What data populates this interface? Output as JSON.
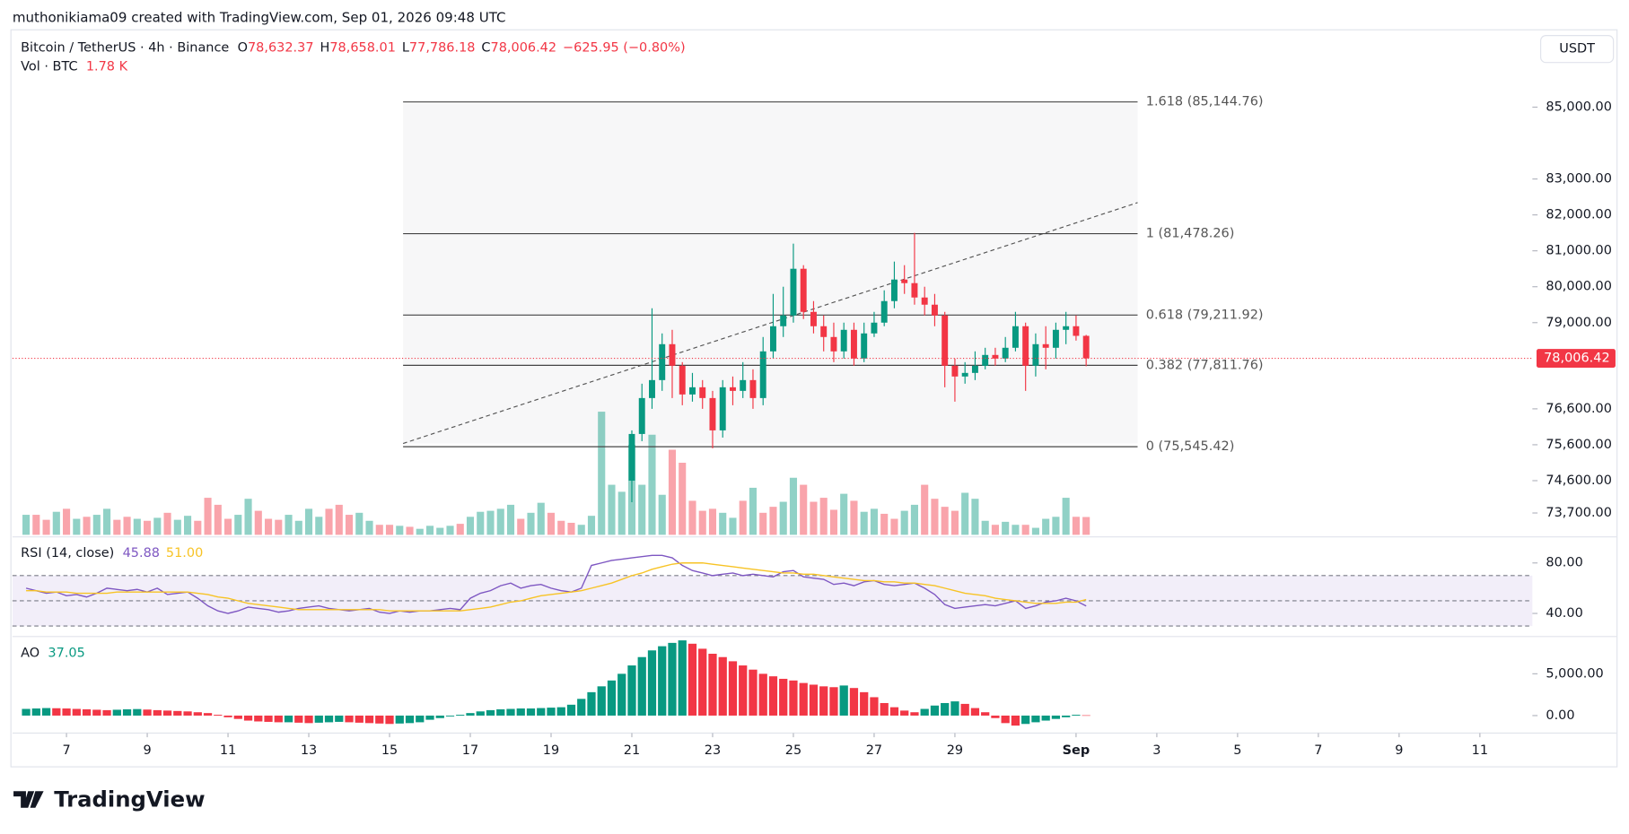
{
  "header": {
    "credit": "muthonikiama09 created with TradingView.com, Sep 01, 2026 09:48 UTC",
    "currency": "USDT",
    "logo": "TradingView"
  },
  "chart_data": [
    {
      "type": "candlestick",
      "title": "Bitcoin / TetherUS · 4h · Binance",
      "ohlc_readout": [
        {
          "key": "O",
          "value": "78,632.37"
        },
        {
          "key": "H",
          "value": "78,658.01"
        },
        {
          "key": "L",
          "value": "77,786.18"
        },
        {
          "key": "C",
          "value": "78,006.42"
        }
      ],
      "change": "−625.95 (−0.80%)",
      "up_color": "#089981",
      "down_color": "#f23645",
      "xlim": [
        -1.35,
        149.2
      ],
      "ylim": [
        73092,
        87110
      ],
      "yticks": [
        {
          "value": 85000,
          "label": "85,000.00"
        },
        {
          "value": 83000,
          "label": "83,000.00"
        },
        {
          "value": 82000,
          "label": "82,000.00"
        },
        {
          "value": 81000,
          "label": "81,000.00"
        },
        {
          "value": 80000,
          "label": "80,000.00"
        },
        {
          "value": 79000,
          "label": "79,000.00"
        },
        {
          "value": 76600,
          "label": "76,600.00"
        },
        {
          "value": 75600,
          "label": "75,600.00"
        },
        {
          "value": 74600,
          "label": "74,600.00"
        },
        {
          "value": 73700,
          "label": "73,700.00"
        }
      ],
      "last_price_label": "78,006.42",
      "x": [
        60,
        61,
        62,
        63,
        64,
        65,
        66,
        67,
        68,
        69,
        70,
        71,
        72,
        73,
        74,
        75,
        76,
        77,
        78,
        79,
        80,
        81,
        82,
        83,
        84,
        85,
        86,
        87,
        88,
        89,
        90,
        91,
        92,
        93,
        94,
        95,
        96,
        97,
        98,
        99,
        100,
        101,
        102,
        103,
        104,
        105
      ],
      "open": [
        74600,
        75900,
        76900,
        77400,
        78400,
        77800,
        77000,
        77200,
        76900,
        76000,
        77200,
        77100,
        77400,
        76900,
        78200,
        78900,
        79200,
        80500,
        79300,
        78900,
        78600,
        78200,
        78800,
        78000,
        78700,
        79000,
        79600,
        80200,
        80100,
        79700,
        79500,
        79200,
        77800,
        77500,
        77600,
        77800,
        78100,
        78000,
        78300,
        78900,
        77800,
        78400,
        78300,
        78800,
        78900,
        78632.37
      ],
      "high": [
        76000,
        77300,
        79400,
        78700,
        78800,
        77900,
        77600,
        77400,
        77100,
        77400,
        77500,
        77900,
        77700,
        78600,
        79800,
        80000,
        81200,
        80600,
        79600,
        79200,
        79000,
        79000,
        79000,
        79000,
        79300,
        79900,
        80700,
        80600,
        81500,
        80000,
        79800,
        79300,
        78000,
        77900,
        78200,
        78300,
        78300,
        78600,
        79300,
        79000,
        78700,
        78900,
        79000,
        79300,
        79200,
        78658.01
      ],
      "low": [
        74000,
        75700,
        76600,
        77100,
        76900,
        76700,
        76800,
        76600,
        75500,
        75800,
        76700,
        76900,
        76600,
        76700,
        78000,
        78600,
        79000,
        79100,
        78700,
        78200,
        77900,
        78000,
        77800,
        77900,
        78600,
        78900,
        79400,
        79800,
        79500,
        79200,
        78900,
        77200,
        76800,
        77300,
        77400,
        77700,
        77800,
        77900,
        78200,
        77100,
        77500,
        77700,
        78000,
        78400,
        78500,
        77786.18
      ],
      "close": [
        75900,
        76900,
        77400,
        78400,
        77800,
        77000,
        77200,
        76900,
        76000,
        77200,
        77100,
        77400,
        76900,
        78200,
        78900,
        79200,
        80500,
        79300,
        78900,
        78600,
        78200,
        78800,
        78000,
        78700,
        79000,
        79600,
        80200,
        80100,
        79700,
        79500,
        79200,
        77800,
        77500,
        77600,
        77800,
        78100,
        78000,
        78300,
        78900,
        77800,
        78400,
        78300,
        78800,
        78900,
        78632.37,
        78006.42
      ],
      "fib_levels": [
        {
          "label": "1.618 (85,144.76)",
          "value": 85144.76
        },
        {
          "label": "1 (81,478.26)",
          "value": 81478.26
        },
        {
          "label": "0.618 (79,211.92)",
          "value": 79211.92
        },
        {
          "label": "0.382 (77,811.76)",
          "value": 77811.76
        },
        {
          "label": "0 (75,545.42)",
          "value": 75545.42
        }
      ],
      "volume": {
        "name": "Vol · BTC",
        "readout": "1.78 K",
        "ylim": [
          0,
          14
        ],
        "x": [
          0,
          1,
          2,
          3,
          4,
          5,
          6,
          7,
          8,
          9,
          10,
          11,
          12,
          13,
          14,
          15,
          16,
          17,
          18,
          19,
          20,
          21,
          22,
          23,
          24,
          25,
          26,
          27,
          28,
          29,
          30,
          31,
          32,
          33,
          34,
          35,
          36,
          37,
          38,
          39,
          40,
          41,
          42,
          43,
          44,
          45,
          46,
          47,
          48,
          49,
          50,
          51,
          52,
          53,
          54,
          55,
          56,
          57,
          58,
          59,
          60,
          61,
          62,
          63,
          64,
          65,
          66,
          67,
          68,
          69,
          70,
          71,
          72,
          73,
          74,
          75,
          76,
          77,
          78,
          79,
          80,
          81,
          82,
          83,
          84,
          85,
          86,
          87,
          88,
          89,
          90,
          91,
          92,
          93,
          94,
          95,
          96,
          97,
          98,
          99,
          100,
          101,
          102,
          103,
          104,
          105
        ],
        "values": [
          2.0,
          2.0,
          1.5,
          2.3,
          2.6,
          1.6,
          1.8,
          2.0,
          2.6,
          1.5,
          1.8,
          1.6,
          1.4,
          1.7,
          2.2,
          1.5,
          1.9,
          1.4,
          3.7,
          3.0,
          1.6,
          2.0,
          3.6,
          2.4,
          1.6,
          1.5,
          2.0,
          1.4,
          2.6,
          1.8,
          2.6,
          3.0,
          2.0,
          2.2,
          1.4,
          1.0,
          1.0,
          0.9,
          0.8,
          0.6,
          0.9,
          0.7,
          0.9,
          1.1,
          1.8,
          2.3,
          2.4,
          2.6,
          3.0,
          1.6,
          2.2,
          3.2,
          2.2,
          1.4,
          1.2,
          1.0,
          1.9,
          12.3,
          5.0,
          4.3,
          9.0,
          5.0,
          10.0,
          4.0,
          8.5,
          7.2,
          3.4,
          2.4,
          2.6,
          2.2,
          1.7,
          3.4,
          4.7,
          2.2,
          2.8,
          3.3,
          5.7,
          5.0,
          3.3,
          3.7,
          2.5,
          4.1,
          3.4,
          2.3,
          2.6,
          2.1,
          1.6,
          2.4,
          3.0,
          5.0,
          3.6,
          2.8,
          2.4,
          4.2,
          3.6,
          1.4,
          1.0,
          1.3,
          1.0,
          1.0,
          0.7,
          1.6,
          1.8,
          3.7,
          1.8,
          1.78
        ]
      }
    },
    {
      "type": "line",
      "title": "RSI (14, close)",
      "xlim": [
        -1.35,
        149.2
      ],
      "ylim": [
        22.5,
        99
      ],
      "yticks": [
        {
          "value": 80,
          "label": "80.00"
        },
        {
          "value": 40,
          "label": "40.00"
        }
      ],
      "bands": [
        70,
        50,
        30
      ],
      "band_color": "#7e57c2",
      "x": [
        0,
        1,
        2,
        3,
        4,
        5,
        6,
        7,
        8,
        9,
        10,
        11,
        12,
        13,
        14,
        15,
        16,
        17,
        18,
        19,
        20,
        21,
        22,
        23,
        24,
        25,
        26,
        27,
        28,
        29,
        30,
        31,
        32,
        33,
        34,
        35,
        36,
        37,
        38,
        39,
        40,
        41,
        42,
        43,
        44,
        45,
        46,
        47,
        48,
        49,
        50,
        51,
        52,
        53,
        54,
        55,
        56,
        57,
        58,
        59,
        60,
        61,
        62,
        63,
        64,
        65,
        66,
        67,
        68,
        69,
        70,
        71,
        72,
        73,
        74,
        75,
        76,
        77,
        78,
        79,
        80,
        81,
        82,
        83,
        84,
        85,
        86,
        87,
        88,
        89,
        90,
        91,
        92,
        93,
        94,
        95,
        96,
        97,
        98,
        99,
        100,
        101,
        102,
        103,
        104,
        105
      ],
      "series": [
        {
          "readout": "45.88",
          "color": "#7e57c2",
          "values": [
            60,
            58,
            56,
            57,
            54,
            55,
            53,
            56,
            60,
            59,
            58,
            59,
            57,
            60,
            55,
            56,
            57,
            52,
            46,
            42,
            40,
            42,
            45,
            44,
            43,
            41,
            42,
            44,
            45,
            46,
            44,
            43,
            42,
            43,
            44,
            41,
            40,
            42,
            41,
            42,
            42,
            43,
            44,
            43,
            52,
            56,
            58,
            62,
            64,
            60,
            62,
            63,
            60,
            58,
            57,
            60,
            78,
            80,
            82,
            83,
            84,
            85,
            86,
            86,
            84,
            78,
            74,
            72,
            70,
            71,
            72,
            70,
            71,
            70,
            69,
            73,
            74,
            69,
            68,
            67,
            63,
            64,
            62,
            65,
            66,
            63,
            62,
            63,
            64,
            60,
            55,
            47,
            44,
            45,
            46,
            47,
            46,
            48,
            50,
            44,
            46,
            49,
            50,
            52,
            50,
            45.88
          ]
        },
        {
          "readout": "51.00",
          "color": "#f7c325",
          "values": [
            58,
            58,
            57,
            57,
            57,
            56,
            56,
            56,
            56,
            57,
            57,
            57,
            57,
            57,
            57,
            57,
            57,
            56,
            55,
            53,
            52,
            50,
            48,
            47,
            46,
            45,
            44,
            43,
            43,
            43,
            43,
            43,
            43,
            43,
            43,
            43,
            42,
            42,
            42,
            42,
            42,
            42,
            42,
            42,
            43,
            44,
            45,
            47,
            49,
            50,
            52,
            54,
            55,
            56,
            57,
            58,
            60,
            62,
            64,
            67,
            70,
            72,
            75,
            77,
            79,
            80,
            80,
            80,
            79,
            78,
            77,
            76,
            75,
            74,
            73,
            72,
            72,
            71,
            71,
            70,
            69,
            68,
            67,
            66,
            66,
            65,
            65,
            64,
            64,
            63,
            62,
            60,
            58,
            56,
            55,
            54,
            52,
            51,
            50,
            49,
            48,
            48,
            48,
            49,
            49,
            51
          ]
        }
      ]
    },
    {
      "type": "bar",
      "title": "AO",
      "readout": "37.05",
      "up_color": "#089981",
      "down_color": "#f23645",
      "xlim": [
        -1.35,
        149.2
      ],
      "ylim": [
        -1970,
        9210
      ],
      "yticks": [
        {
          "value": 5000,
          "label": "5,000.00"
        },
        {
          "value": 0,
          "label": "0.00"
        }
      ],
      "xticks": [
        {
          "value": 4,
          "label": "7"
        },
        {
          "value": 12,
          "label": "9"
        },
        {
          "value": 20,
          "label": "11"
        },
        {
          "value": 28,
          "label": "13"
        },
        {
          "value": 36,
          "label": "15"
        },
        {
          "value": 44,
          "label": "17"
        },
        {
          "value": 52,
          "label": "19"
        },
        {
          "value": 60,
          "label": "21"
        },
        {
          "value": 68,
          "label": "23"
        },
        {
          "value": 76,
          "label": "25"
        },
        {
          "value": 84,
          "label": "27"
        },
        {
          "value": 92,
          "label": "29"
        },
        {
          "value": 104,
          "label": "Sep"
        },
        {
          "value": 112,
          "label": "3"
        },
        {
          "value": 120,
          "label": "5"
        },
        {
          "value": 128,
          "label": "7"
        },
        {
          "value": 136,
          "label": "9"
        },
        {
          "value": 144,
          "label": "11"
        }
      ],
      "x": [
        0,
        1,
        2,
        3,
        4,
        5,
        6,
        7,
        8,
        9,
        10,
        11,
        12,
        13,
        14,
        15,
        16,
        17,
        18,
        19,
        20,
        21,
        22,
        23,
        24,
        25,
        26,
        27,
        28,
        29,
        30,
        31,
        32,
        33,
        34,
        35,
        36,
        37,
        38,
        39,
        40,
        41,
        42,
        43,
        44,
        45,
        46,
        47,
        48,
        49,
        50,
        51,
        52,
        53,
        54,
        55,
        56,
        57,
        58,
        59,
        60,
        61,
        62,
        63,
        64,
        65,
        66,
        67,
        68,
        69,
        70,
        71,
        72,
        73,
        74,
        75,
        76,
        77,
        78,
        79,
        80,
        81,
        82,
        83,
        84,
        85,
        86,
        87,
        88,
        89,
        90,
        91,
        92,
        93,
        94,
        95,
        96,
        97,
        98,
        99,
        100,
        101,
        102,
        103,
        104,
        105
      ],
      "values": [
        800,
        850,
        900,
        880,
        850,
        800,
        750,
        700,
        650,
        700,
        750,
        780,
        720,
        650,
        600,
        550,
        500,
        400,
        300,
        100,
        -200,
        -400,
        -600,
        -700,
        -750,
        -800,
        -800,
        -850,
        -900,
        -850,
        -800,
        -750,
        -800,
        -850,
        -900,
        -950,
        -1000,
        -950,
        -900,
        -800,
        -500,
        -300,
        -100,
        100,
        300,
        500,
        650,
        750,
        800,
        850,
        850,
        900,
        950,
        1000,
        1300,
        2000,
        2800,
        3500,
        4200,
        5000,
        6000,
        7000,
        7800,
        8300,
        8700,
        9000,
        8600,
        8000,
        7400,
        7000,
        6500,
        6000,
        5500,
        5000,
        4700,
        4400,
        4200,
        3900,
        3700,
        3500,
        3400,
        3600,
        3300,
        2800,
        2200,
        1500,
        1000,
        600,
        400,
        800,
        1200,
        1500,
        1700,
        1400,
        900,
        400,
        -300,
        -900,
        -1200,
        -1000,
        -800,
        -600,
        -400,
        -200,
        100,
        37.05
      ]
    }
  ]
}
